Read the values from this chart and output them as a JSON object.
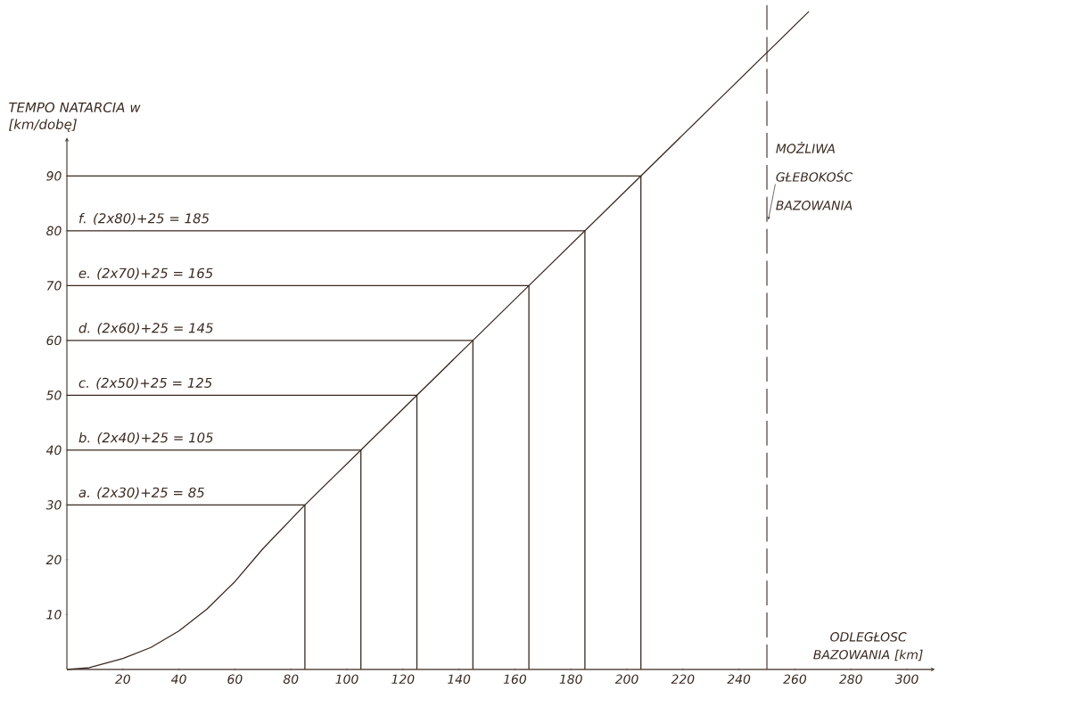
{
  "chart_data": {
    "type": "line",
    "xlabel": "ODLEGŁOSC BAZOWANIA [km]",
    "ylabel": "TEMPO NATARCIA w [km/dobę]",
    "xlim": [
      0,
      310
    ],
    "ylim": [
      0,
      122
    ],
    "xticks": [
      20,
      40,
      60,
      80,
      100,
      120,
      140,
      160,
      180,
      200,
      220,
      240,
      260,
      280,
      300
    ],
    "yticks": [
      10,
      20,
      30,
      40,
      50,
      60,
      70,
      80,
      90
    ],
    "grid": false,
    "marker": "none",
    "line_style": "solid",
    "series": [
      {
        "color": "#3a2a22",
        "x": [
          0,
          8,
          20,
          30,
          40,
          50,
          60,
          70,
          85,
          105,
          125,
          145,
          165,
          185,
          205,
          265
        ],
        "values": [
          0,
          0.3,
          2,
          4,
          7,
          11,
          16,
          22,
          30,
          40,
          50,
          60,
          70,
          80,
          90,
          120
        ]
      },
      {
        "color": "#3a2a22",
        "x": [
          0,
          85,
          85
        ],
        "values": [
          30,
          30,
          0
        ]
      },
      {
        "color": "#3a2a22",
        "x": [
          0,
          105,
          105
        ],
        "values": [
          40,
          40,
          0
        ]
      },
      {
        "color": "#3a2a22",
        "x": [
          0,
          125,
          125
        ],
        "values": [
          50,
          50,
          0
        ]
      },
      {
        "color": "#3a2a22",
        "x": [
          0,
          145,
          145
        ],
        "values": [
          60,
          60,
          0
        ]
      },
      {
        "color": "#3a2a22",
        "x": [
          0,
          165,
          165
        ],
        "values": [
          70,
          70,
          0
        ]
      },
      {
        "color": "#3a2a22",
        "x": [
          0,
          185,
          185
        ],
        "values": [
          80,
          80,
          0
        ]
      },
      {
        "color": "#3a2a22",
        "x": [
          0,
          205,
          205
        ],
        "values": [
          90,
          90,
          0
        ]
      }
    ],
    "annotations": [
      "a. (2x30)+25 = 85",
      "b. (2x40)+25 = 105",
      "c. (2x50)+25 = 125",
      "d. (2x60)+25 = 145",
      "e. (2x70)+25 = 165",
      "f. (2x80)+25 = 185"
    ],
    "ref_lines": [
      {
        "axis": "x",
        "value": 250,
        "label": "MOŻLIWA GŁEBOKOŚC BAZOWANIA",
        "line_style": "dashed"
      }
    ]
  }
}
